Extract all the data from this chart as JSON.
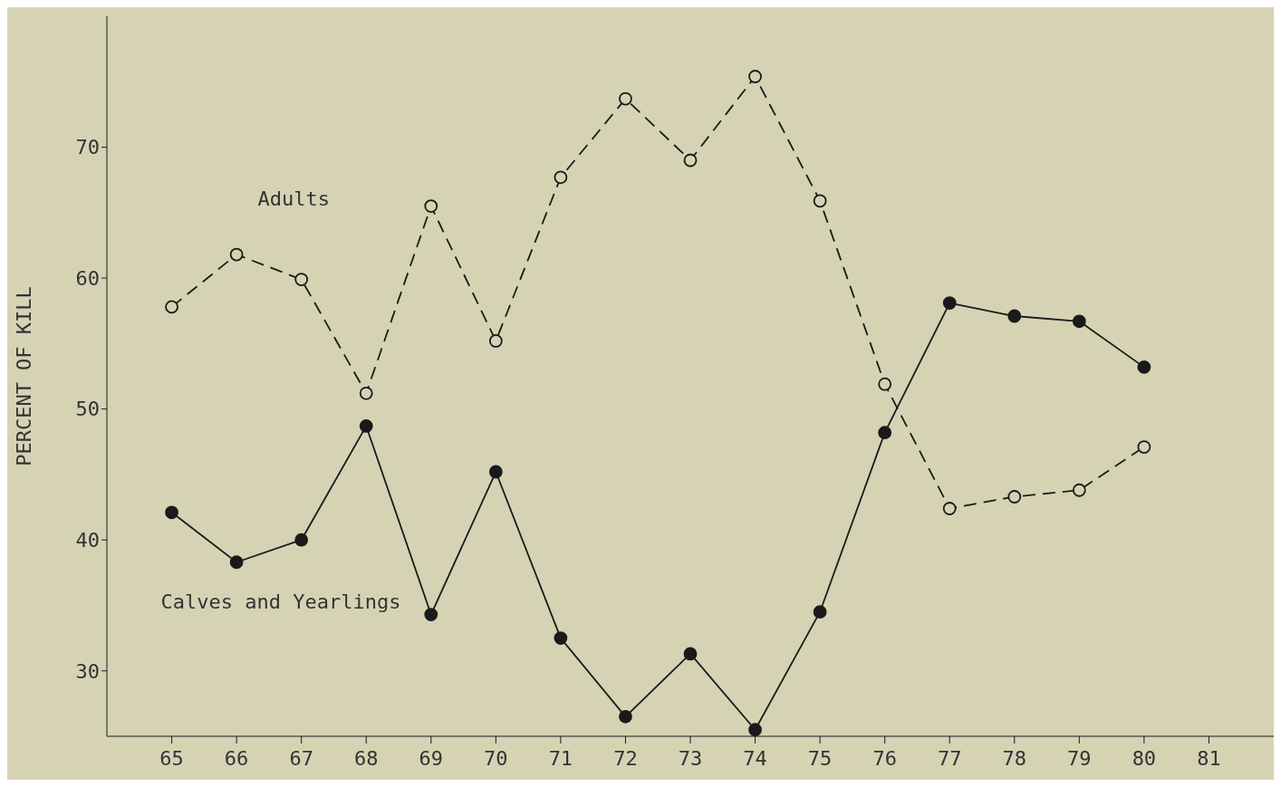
{
  "chart_data": {
    "type": "line",
    "ylabel": "PERCENT OF KILL",
    "x": [
      65,
      66,
      67,
      68,
      69,
      70,
      71,
      72,
      73,
      74,
      75,
      76,
      77,
      78,
      79,
      80
    ],
    "series": [
      {
        "name": "Adults",
        "color": "#1a1a1a",
        "marker": "circle",
        "line_style": "dashed",
        "values": [
          57.8,
          61.8,
          59.9,
          51.2,
          65.5,
          55.2,
          67.7,
          73.7,
          69.0,
          75.4,
          65.9,
          51.9,
          42.4,
          43.3,
          43.8,
          47.1
        ]
      },
      {
        "name": "Calves and Yearlings",
        "color": "#1a1a1a",
        "marker": "circle",
        "line_style": "solid",
        "values": [
          42.1,
          38.3,
          40.0,
          48.7,
          34.3,
          45.2,
          32.5,
          26.5,
          31.3,
          25.5,
          34.5,
          48.2,
          58.1,
          57.1,
          56.7,
          53.2
        ]
      }
    ],
    "xlim": [
      64,
      82
    ],
    "xticks": [
      65,
      66,
      67,
      68,
      69,
      70,
      71,
      72,
      73,
      74,
      75,
      76,
      77,
      78,
      79,
      80,
      81
    ],
    "ylim": [
      25,
      80
    ],
    "yticks": [
      30,
      40,
      50,
      60,
      70
    ],
    "grid": false
  }
}
